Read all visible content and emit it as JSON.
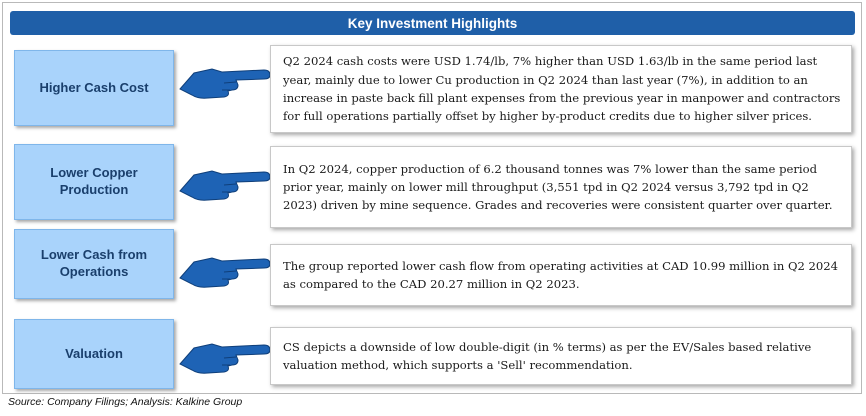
{
  "header": {
    "title": "Key Investment Highlights"
  },
  "highlights": [
    {
      "label": "Higher Cash Cost",
      "text": "Q2 2024  cash costs  were USD 1.74/lb, 7% higher than USD 1.63/lb in the same period last year, mainly due to lower Cu production in Q2 2024 than last year (7%), in addition to an increase in paste back fill plant expenses from the previous year in manpower and contractors for full operations partially offset by higher by-product credits due to higher silver prices."
    },
    {
      "label": "Lower Copper Production",
      "text": "In Q2 2024, copper production of 6.2 thousand tonnes was 7% lower than the same period prior year, mainly on lower mill throughput (3,551 tpd in Q2 2024 versus 3,792 tpd in Q2 2023) driven by mine sequence. Grades and recoveries were consistent quarter over quarter."
    },
    {
      "label": "Lower Cash from Operations",
      "text": "The group reported lower cash flow from operating activities at CAD 10.99 million in Q2 2024 as compared to the CAD 20.27 million in Q2 2023."
    },
    {
      "label": "Valuation",
      "text": "CS depicts a downside of low double-digit (in % terms) as per the EV/Sales based relative valuation method, which supports a 'Sell' recommendation."
    }
  ],
  "footer": {
    "source": "Source: Company Filings; Analysis: Kalkine Group"
  },
  "colors": {
    "header_bg": "#1f5fa8",
    "label_bg": "#a9d3fb",
    "label_text": "#1a3f6c",
    "hand": "#1e63b5"
  },
  "icons": [
    "pointing-hand-icon"
  ]
}
